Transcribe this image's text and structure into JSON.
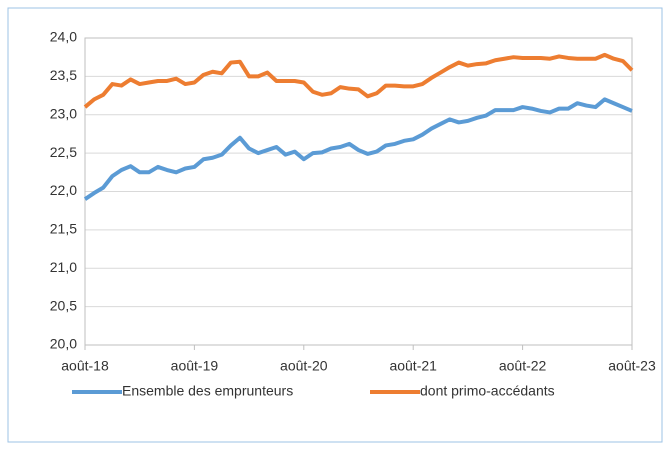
{
  "chart_data": {
    "type": "line",
    "categories": [
      "août-18",
      null,
      null,
      null,
      null,
      null,
      null,
      null,
      null,
      null,
      null,
      null,
      "août-19",
      null,
      null,
      null,
      null,
      null,
      null,
      null,
      null,
      null,
      null,
      null,
      "août-20",
      null,
      null,
      null,
      null,
      null,
      null,
      null,
      null,
      null,
      null,
      null,
      "août-21",
      null,
      null,
      null,
      null,
      null,
      null,
      null,
      null,
      null,
      null,
      null,
      "août-22",
      null,
      null,
      null,
      null,
      null,
      null,
      null,
      null,
      null,
      null,
      null,
      "août-23"
    ],
    "series": [
      {
        "name": "Ensemble des emprunteurs",
        "color": "#5b9bd5",
        "values": [
          21.9,
          21.98,
          22.05,
          22.2,
          22.28,
          22.33,
          22.25,
          22.25,
          22.32,
          22.28,
          22.25,
          22.3,
          22.32,
          22.42,
          22.44,
          22.48,
          22.6,
          22.7,
          22.56,
          22.5,
          22.54,
          22.58,
          22.48,
          22.52,
          22.42,
          22.5,
          22.51,
          22.56,
          22.58,
          22.62,
          22.54,
          22.49,
          22.52,
          22.6,
          22.62,
          22.66,
          22.68,
          22.74,
          22.82,
          22.88,
          22.94,
          22.9,
          22.92,
          22.96,
          22.99,
          23.06,
          23.06,
          23.06,
          23.1,
          23.08,
          23.05,
          23.03,
          23.08,
          23.08,
          23.15,
          23.12,
          23.1,
          23.2,
          23.15,
          23.1,
          23.05
        ]
      },
      {
        "name": "dont primo-accédants",
        "color": "#ed7d31",
        "values": [
          23.1,
          23.2,
          23.26,
          23.4,
          23.38,
          23.46,
          23.4,
          23.42,
          23.44,
          23.44,
          23.47,
          23.4,
          23.42,
          23.52,
          23.56,
          23.54,
          23.68,
          23.69,
          23.5,
          23.5,
          23.55,
          23.44,
          23.44,
          23.44,
          23.42,
          23.3,
          23.26,
          23.28,
          23.36,
          23.34,
          23.33,
          23.24,
          23.28,
          23.38,
          23.38,
          23.37,
          23.37,
          23.4,
          23.48,
          23.55,
          23.62,
          23.68,
          23.64,
          23.66,
          23.67,
          23.71,
          23.73,
          23.75,
          23.74,
          23.74,
          23.74,
          23.73,
          23.76,
          23.74,
          23.73,
          23.73,
          23.73,
          23.78,
          23.73,
          23.7,
          23.58
        ]
      }
    ],
    "ylim": [
      20,
      24
    ],
    "yticks": [
      {
        "value": 20,
        "label": "20,0"
      },
      {
        "value": 20.5,
        "label": "20,5"
      },
      {
        "value": 21,
        "label": "21,0"
      },
      {
        "value": 21.5,
        "label": "21,5"
      },
      {
        "value": 22,
        "label": "22,0"
      },
      {
        "value": 22.5,
        "label": "22,5"
      },
      {
        "value": 23,
        "label": "23,0"
      },
      {
        "value": 23.5,
        "label": "23,5"
      },
      {
        "value": 24,
        "label": "24,0"
      }
    ],
    "grid": true,
    "legend": "bottom"
  }
}
